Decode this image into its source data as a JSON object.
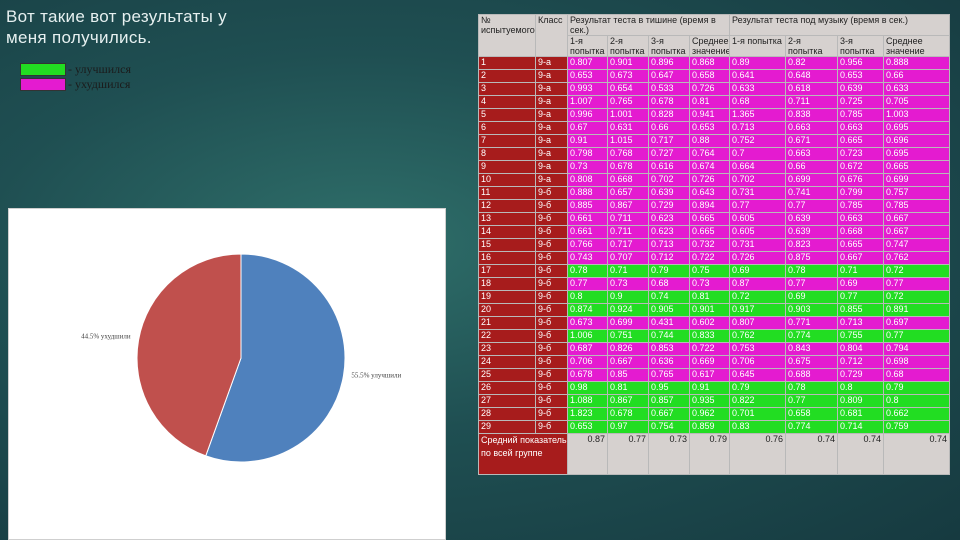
{
  "title": "Вот такие вот результаты у меня получились.",
  "legend": [
    {
      "label": "- улучшился",
      "color": "#22dd22"
    },
    {
      "label": "- ухудшился",
      "color": "#e41bd0"
    }
  ],
  "chart_data": {
    "type": "pie",
    "labels": [
      "55.5% улучшили",
      "44.5% ухудшили"
    ],
    "values": [
      55.5,
      44.5
    ],
    "colors": [
      "#4f81bd",
      "#c0504d"
    ]
  },
  "table": {
    "headers": {
      "num": "№ испытуемого",
      "class": "Класс",
      "silence": "Результат теста в тишине (время в сек.)",
      "music": "Результат теста под музыку (время в сек.)",
      "s1": "1-я попытка",
      "s2": "2-я попытка",
      "s3": "3-я попытка",
      "savg": "Среднее значение",
      "m1": "1-я попытка",
      "m2": "2-я попытка",
      "m3": "3-я попытка",
      "mavg": "Среднее значение"
    },
    "rows": [
      {
        "n": "1",
        "c": "9-а",
        "s": [
          "0.807",
          "0.901",
          "0.896",
          "0.868"
        ],
        "m": [
          "0.89",
          "0.82",
          "0.956",
          "0.888"
        ],
        "st": "m"
      },
      {
        "n": "2",
        "c": "9-а",
        "s": [
          "0.653",
          "0.673",
          "0.647",
          "0.658"
        ],
        "m": [
          "0.641",
          "0.648",
          "0.653",
          "0.66"
        ],
        "st": "m"
      },
      {
        "n": "3",
        "c": "9-а",
        "s": [
          "0.993",
          "0.654",
          "0.533",
          "0.726"
        ],
        "m": [
          "0.633",
          "0.618",
          "0.639",
          "0.633"
        ],
        "st": "m"
      },
      {
        "n": "4",
        "c": "9-а",
        "s": [
          "1.007",
          "0.765",
          "0.678",
          "0.81"
        ],
        "m": [
          "0.68",
          "0.711",
          "0.725",
          "0.705"
        ],
        "st": "m"
      },
      {
        "n": "5",
        "c": "9-а",
        "s": [
          "0.996",
          "1.001",
          "0.828",
          "0.941"
        ],
        "m": [
          "1.365",
          "0.838",
          "0.785",
          "1.003"
        ],
        "st": "m"
      },
      {
        "n": "6",
        "c": "9-а",
        "s": [
          "0.67",
          "0.631",
          "0.66",
          "0.653"
        ],
        "m": [
          "0.713",
          "0.663",
          "0.663",
          "0.695"
        ],
        "st": "m"
      },
      {
        "n": "7",
        "c": "9-а",
        "s": [
          "0.91",
          "1.015",
          "0.717",
          "0.88"
        ],
        "m": [
          "0.752",
          "0.671",
          "0.665",
          "0.696"
        ],
        "st": "m"
      },
      {
        "n": "8",
        "c": "9-а",
        "s": [
          "0.798",
          "0.768",
          "0.727",
          "0.764"
        ],
        "m": [
          "0.7",
          "0.663",
          "0.723",
          "0.695"
        ],
        "st": "m"
      },
      {
        "n": "9",
        "c": "9-а",
        "s": [
          "0.73",
          "0.678",
          "0.616",
          "0.674"
        ],
        "m": [
          "0.664",
          "0.66",
          "0.672",
          "0.665"
        ],
        "st": "m"
      },
      {
        "n": "10",
        "c": "9-а",
        "s": [
          "0.808",
          "0.668",
          "0.702",
          "0.726"
        ],
        "m": [
          "0.702",
          "0.699",
          "0.676",
          "0.699"
        ],
        "st": "m"
      },
      {
        "n": "11",
        "c": "9-б",
        "s": [
          "0.888",
          "0.657",
          "0.639",
          "0.643"
        ],
        "m": [
          "0.731",
          "0.741",
          "0.799",
          "0.757"
        ],
        "st": "m"
      },
      {
        "n": "12",
        "c": "9-б",
        "s": [
          "0.885",
          "0.867",
          "0.729",
          "0.894"
        ],
        "m": [
          "0.77",
          "0.77",
          "0.785",
          "0.785"
        ],
        "st": "m"
      },
      {
        "n": "13",
        "c": "9-б",
        "s": [
          "0.661",
          "0.711",
          "0.623",
          "0.665"
        ],
        "m": [
          "0.605",
          "0.639",
          "0.663",
          "0.667"
        ],
        "st": "m"
      },
      {
        "n": "14",
        "c": "9-б",
        "s": [
          "0.661",
          "0.711",
          "0.623",
          "0.665"
        ],
        "m": [
          "0.605",
          "0.639",
          "0.668",
          "0.667"
        ],
        "st": "m"
      },
      {
        "n": "15",
        "c": "9-б",
        "s": [
          "0.766",
          "0.717",
          "0.713",
          "0.732"
        ],
        "m": [
          "0.731",
          "0.823",
          "0.665",
          "0.747"
        ],
        "st": "m"
      },
      {
        "n": "16",
        "c": "9-б",
        "s": [
          "0.743",
          "0.707",
          "0.712",
          "0.722"
        ],
        "m": [
          "0.726",
          "0.875",
          "0.667",
          "0.762"
        ],
        "st": "m"
      },
      {
        "n": "17",
        "c": "9-б",
        "s": [
          "0.78",
          "0.71",
          "0.79",
          "0.75"
        ],
        "m": [
          "0.69",
          "0.78",
          "0.71",
          "0.72"
        ],
        "st": "g"
      },
      {
        "n": "18",
        "c": "9-б",
        "s": [
          "0.77",
          "0.73",
          "0.68",
          "0.73"
        ],
        "m": [
          "0.87",
          "0.77",
          "0.69",
          "0.77"
        ],
        "st": "m"
      },
      {
        "n": "19",
        "c": "9-б",
        "s": [
          "0.8",
          "0.9",
          "0.74",
          "0.81"
        ],
        "m": [
          "0.72",
          "0.69",
          "0.77",
          "0.72"
        ],
        "st": "g"
      },
      {
        "n": "20",
        "c": "9-б",
        "s": [
          "0.874",
          "0.924",
          "0.905",
          "0.901"
        ],
        "m": [
          "0.917",
          "0.903",
          "0.855",
          "0.891"
        ],
        "st": "g"
      },
      {
        "n": "21",
        "c": "9-б",
        "s": [
          "0.673",
          "0.699",
          "0.431",
          "0.602"
        ],
        "m": [
          "0.807",
          "0.771",
          "0.713",
          "0.697"
        ],
        "st": "m"
      },
      {
        "n": "22",
        "c": "9-б",
        "s": [
          "1.006",
          "0.751",
          "0.744",
          "0.833"
        ],
        "m": [
          "0.762",
          "0.774",
          "0.755",
          "0.77"
        ],
        "st": "g"
      },
      {
        "n": "23",
        "c": "9-б",
        "s": [
          "0.687",
          "0.826",
          "0.853",
          "0.722"
        ],
        "m": [
          "0.753",
          "0.843",
          "0.804",
          "0.794"
        ],
        "st": "m"
      },
      {
        "n": "24",
        "c": "9-б",
        "s": [
          "0.706",
          "0.667",
          "0.636",
          "0.669"
        ],
        "m": [
          "0.706",
          "0.675",
          "0.712",
          "0.698"
        ],
        "st": "m"
      },
      {
        "n": "25",
        "c": "9-б",
        "s": [
          "0.678",
          "0.85",
          "0.765",
          "0.617"
        ],
        "m": [
          "0.645",
          "0.688",
          "0.729",
          "0.68"
        ],
        "st": "m"
      },
      {
        "n": "26",
        "c": "9-б",
        "s": [
          "0.98",
          "0.81",
          "0.95",
          "0.91"
        ],
        "m": [
          "0.79",
          "0.78",
          "0.8",
          "0.79"
        ],
        "st": "g"
      },
      {
        "n": "27",
        "c": "9-б",
        "s": [
          "1.088",
          "0.867",
          "0.857",
          "0.935"
        ],
        "m": [
          "0.822",
          "0.77",
          "0.809",
          "0.8"
        ],
        "st": "g"
      },
      {
        "n": "28",
        "c": "9-б",
        "s": [
          "1.823",
          "0.678",
          "0.667",
          "0.962"
        ],
        "m": [
          "0.701",
          "0.658",
          "0.681",
          "0.662"
        ],
        "st": "g"
      },
      {
        "n": "29",
        "c": "9-б",
        "s": [
          "0.653",
          "0.97",
          "0.754",
          "0.859"
        ],
        "m": [
          "0.83",
          "0.774",
          "0.714",
          "0.759"
        ],
        "st": "g"
      }
    ],
    "average": {
      "label": "Средний показатель по всей группе",
      "s": [
        "0.87",
        "0.77",
        "0.73",
        "0.79"
      ],
      "m": [
        "0.76",
        "0.74",
        "0.74",
        "0.74"
      ]
    }
  }
}
